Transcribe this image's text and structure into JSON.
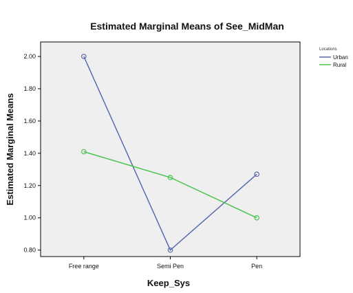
{
  "chart_data": {
    "type": "line",
    "title": "Estimated Marginal Means of See_MidMan",
    "xlabel": "Keep_Sys",
    "ylabel": "Estimated Marginal Means",
    "categories": [
      "Free range",
      "Semi Pen",
      "Pen"
    ],
    "yticks": [
      "0.80",
      "1.00",
      "1.20",
      "1.40",
      "1.60",
      "1.80",
      "2.00"
    ],
    "ylim": [
      0.76,
      2.09
    ],
    "grid": false,
    "legend_title": "Locations",
    "legend_position": "top-right",
    "series": [
      {
        "name": "Urban",
        "values": [
          2.0,
          0.8,
          1.27
        ],
        "color": "#5a6ab0"
      },
      {
        "name": "Rural",
        "values": [
          1.41,
          1.25,
          1.0
        ],
        "color": "#4cc44c"
      }
    ],
    "plot_background": "#efefef"
  }
}
